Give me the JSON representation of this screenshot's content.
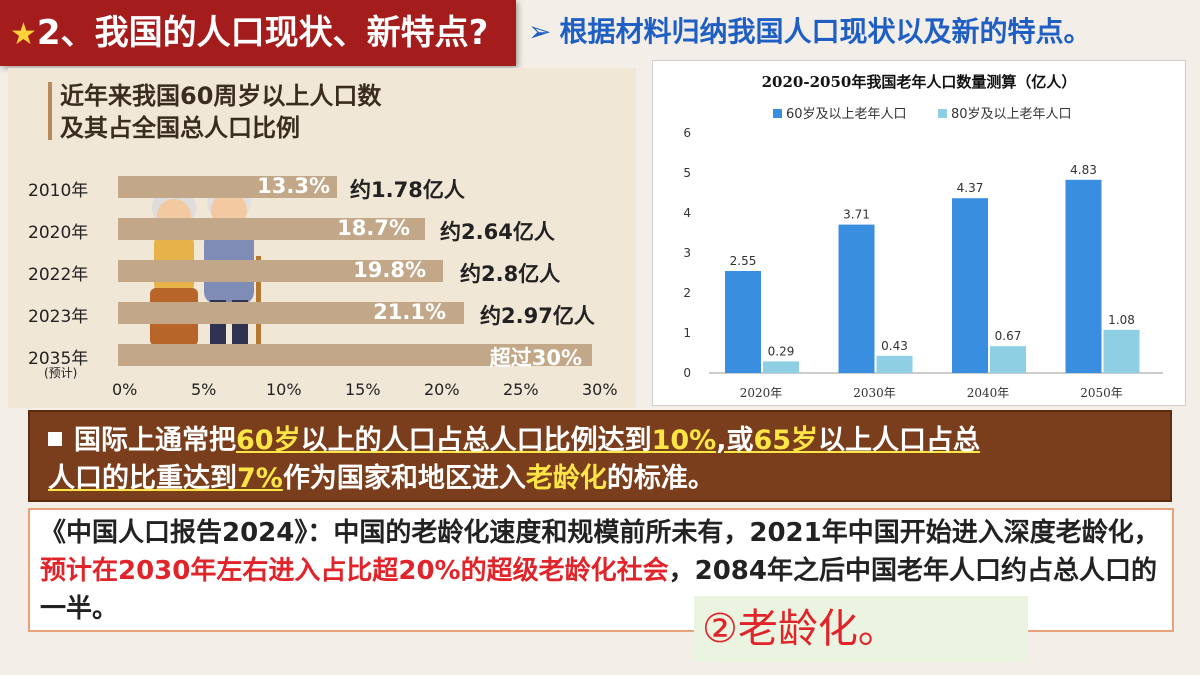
{
  "header": {
    "star": "★",
    "title": "2、我国的人口现状、新特点?",
    "arrow": "➢",
    "subtitle": "根据材料归纳我国人口现状以及新的特点。"
  },
  "left_figure": {
    "title_line1": "近年来我国60周岁以上人口数",
    "title_line2": "及其占全国总人口比例",
    "rows": [
      {
        "year": "2010年",
        "pct": "13.3%",
        "amount": "约1.78亿人",
        "value": 13.3
      },
      {
        "year": "2020年",
        "pct": "18.7%",
        "amount": "约2.64亿人",
        "value": 18.7
      },
      {
        "year": "2022年",
        "pct": "19.8%",
        "amount": "约2.8亿人",
        "value": 19.8
      },
      {
        "year": "2023年",
        "pct": "21.1%",
        "amount": "约2.97亿人",
        "value": 21.1
      },
      {
        "year": "2035年",
        "pct": "超过30%",
        "amount": "",
        "value": 30
      }
    ],
    "note": "(预计)",
    "xticks": [
      "0%",
      "5%",
      "10%",
      "15%",
      "20%",
      "25%",
      "30%"
    ]
  },
  "chart_data": {
    "type": "bar",
    "title": "2020-2050年我国老年人口数量测算（亿人）",
    "categories": [
      "2020年",
      "2030年",
      "2040年",
      "2050年"
    ],
    "series": [
      {
        "name": "60岁及以上老年人口",
        "values": [
          2.55,
          3.71,
          4.37,
          4.83
        ],
        "color": "#3a8ee0"
      },
      {
        "name": "80岁及以上老年人口",
        "values": [
          0.29,
          0.43,
          0.67,
          1.08
        ],
        "color": "#8ecfe4"
      }
    ],
    "value_labels": [
      [
        "2.55",
        "3.71",
        "4.37",
        "4.83"
      ],
      [
        "0.29",
        "0.43",
        "0.67",
        "1.08"
      ]
    ],
    "yticks": [
      "0",
      "1",
      "2",
      "3",
      "4",
      "5",
      "6"
    ],
    "ylim": [
      0,
      6
    ],
    "legend": "top",
    "grid": false
  },
  "banner": {
    "bullet": "■",
    "p1": "国际上通常把",
    "h1": "60岁",
    "p2": "以上的人口占总人口比例达到",
    "h2": "10%",
    "p3": ",或",
    "h3": "65岁",
    "p4": "以上人口占总",
    "p5": "人口的比重达到",
    "h4": "7%",
    "p6": "作为国家和地区进入",
    "h5": "老龄化",
    "p7": "的标准。"
  },
  "quote": {
    "part1": "《中国人口报告2024》：中国的老龄化速度和规模前所未有，2021年中国开始进入深度老龄化，",
    "red": "预计在2030年左右进入占比超20%的超级老龄化社会",
    "part2": "，2084年之后中国老年人口约占总人口的一半。"
  },
  "conclusion": "②老龄化。"
}
